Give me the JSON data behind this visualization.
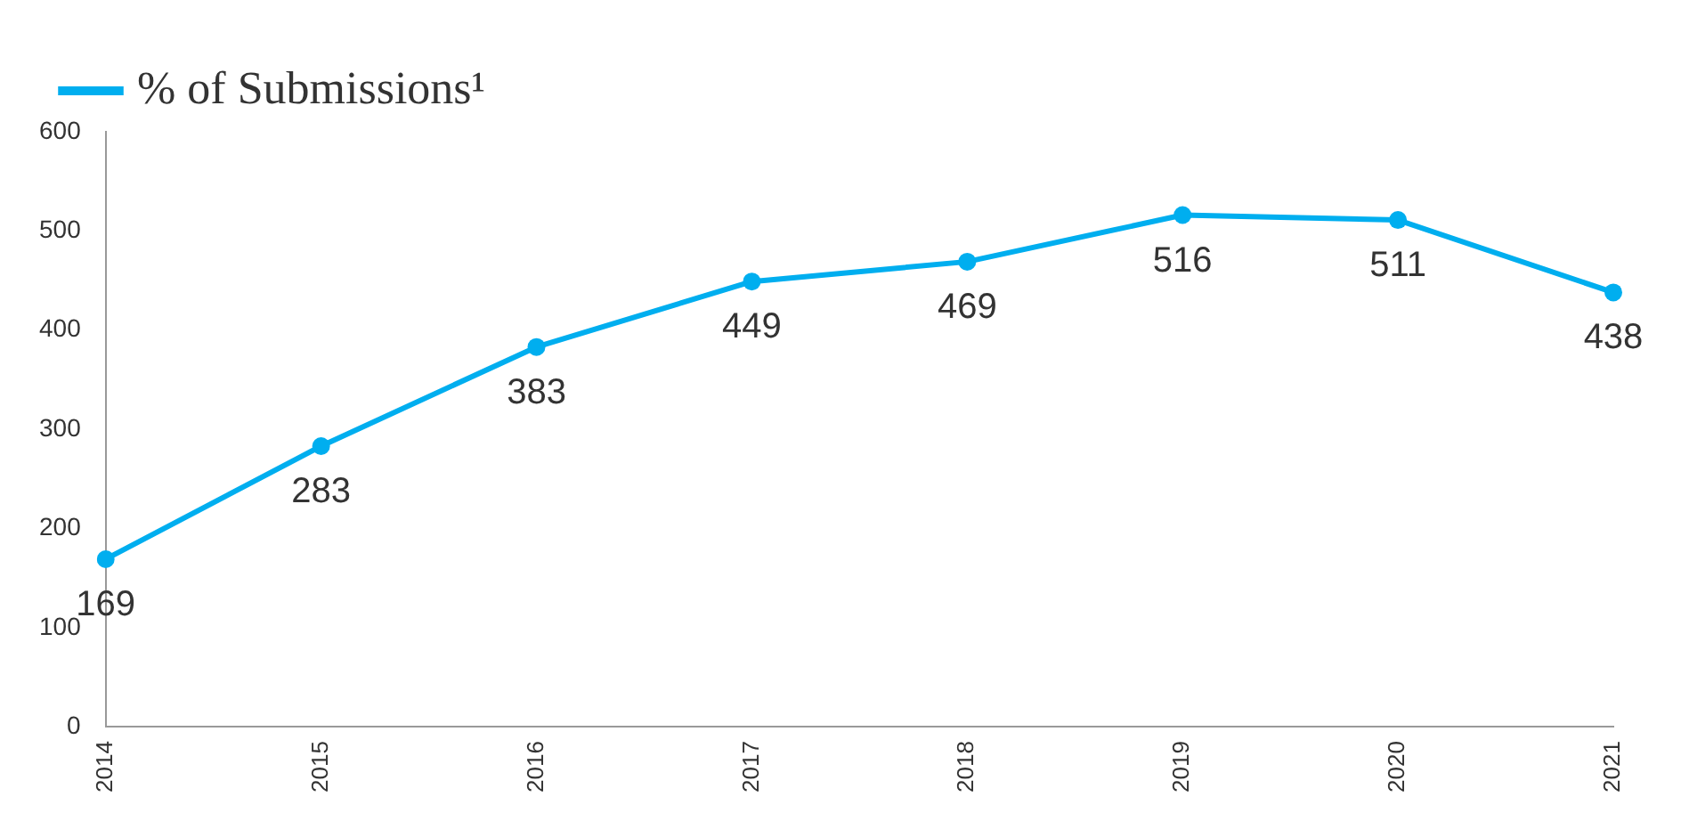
{
  "chart_data": {
    "type": "line",
    "categories": [
      "2014",
      "2015",
      "2016",
      "2017",
      "2018",
      "2019",
      "2020",
      "2021"
    ],
    "series": [
      {
        "name": "% of Submissions¹",
        "color": "#00aeef",
        "values": [
          169,
          283,
          383,
          449,
          469,
          516,
          511,
          438
        ]
      }
    ],
    "ylim": [
      0,
      600
    ],
    "yticks": [
      0,
      100,
      200,
      300,
      400,
      500,
      600
    ],
    "grid": false,
    "legend": "top left",
    "marker": "circle",
    "line_style": "solid",
    "data_labels": true
  }
}
